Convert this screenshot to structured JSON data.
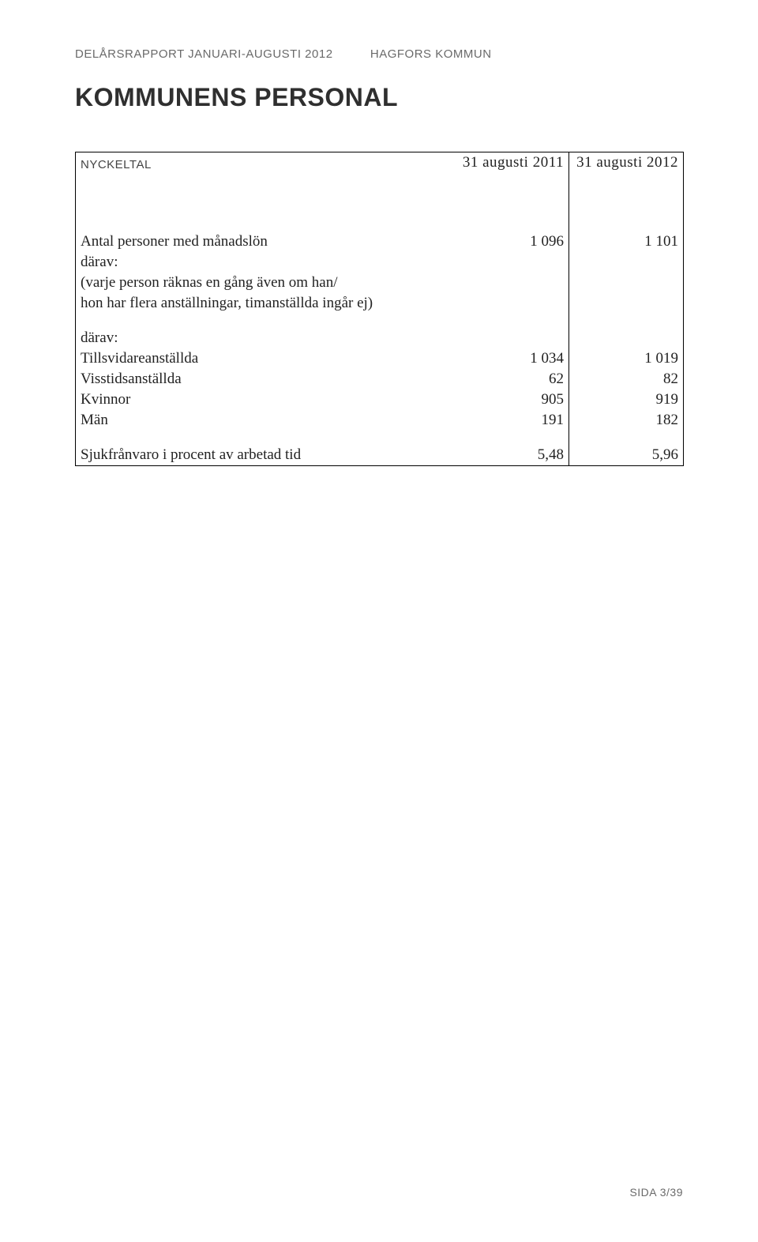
{
  "header": {
    "left": "DELÅRSRAPPORT JANUARI-AUGUSTI 2012",
    "right": "HAGFORS KOMMUN"
  },
  "title": "KOMMUNENS PERSONAL",
  "table": {
    "header_label": "NYCKELTAL",
    "col_a": "31 augusti 2011",
    "col_b": "31 augusti 2012",
    "rows": {
      "r1": {
        "label": "Antal personer med månadslön",
        "a": "1 096",
        "b": "1 101"
      },
      "r2": {
        "label": "därav:"
      },
      "r3": {
        "label": "(varje person räknas en gång även om han/"
      },
      "r4": {
        "label": "hon har flera anställningar, timanställda ingår ej)"
      },
      "r5": {
        "label": "därav:"
      },
      "r6": {
        "label": "Tillsvidareanställda",
        "a": "1 034",
        "b": "1 019"
      },
      "r7": {
        "label": "Visstidsanställda",
        "a": "62",
        "b": "82"
      },
      "r8": {
        "label": "Kvinnor",
        "a": "905",
        "b": "919"
      },
      "r9": {
        "label": "Män",
        "a": "191",
        "b": "182"
      },
      "r10": {
        "label": "Sjukfrånvaro i procent av arbetad tid",
        "a": "5,48",
        "b": "5,96"
      }
    }
  },
  "footer": "SIDA 3/39"
}
